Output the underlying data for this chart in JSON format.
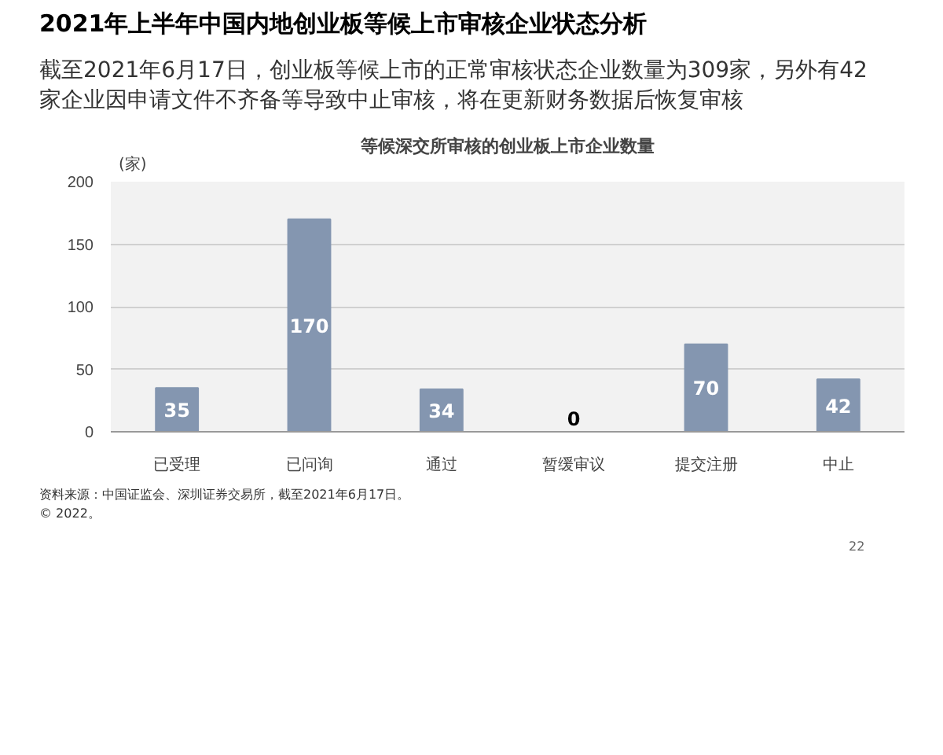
{
  "chart_data": {
    "type": "bar",
    "title": "2021年上半年中国内地创业板等候上市审核企业状态分析",
    "subtitle": "截至2021年6月17日，创业板等候上市的正常审核状态企业数量为309家，另外有42家企业因申请文件不齐备等导致中止审核，将在更新财务数据后恢复审核",
    "annotations": [
      "等候深交所审核的创业板上市企业数量",
      "资料来源：中国证监会、深圳证券交易所，截至2021年6月17日。",
      "© 2022。",
      "22"
    ],
    "ylabel": "(家)",
    "categories": [
      "已受理",
      "已问询",
      "通过",
      "暂缓审议",
      "提交注册",
      "中止"
    ],
    "values": [
      35,
      170,
      34,
      0,
      70,
      42
    ],
    "color": "#8496b0",
    "ylim": [
      0,
      200
    ],
    "yticks": [
      0,
      50,
      100,
      150,
      200
    ],
    "grid": "y",
    "data_labels": true
  }
}
